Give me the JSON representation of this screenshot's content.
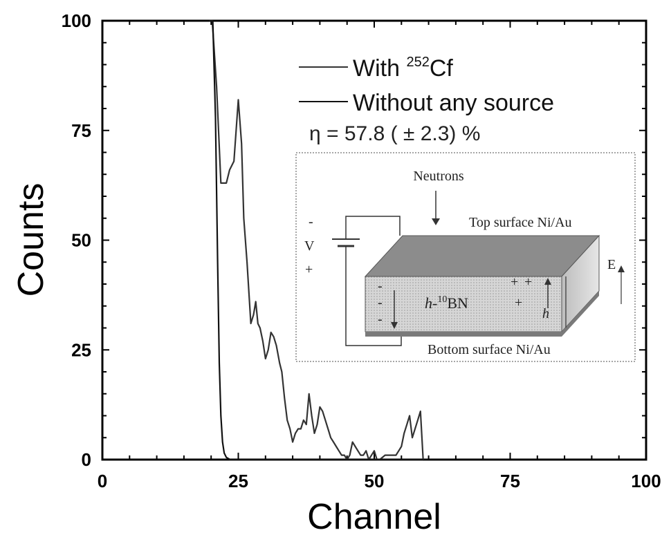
{
  "chart_data": {
    "type": "line",
    "xlabel": "Channel",
    "ylabel": "Counts",
    "xlim": [
      0,
      100
    ],
    "ylim": [
      0,
      100
    ],
    "xticks": [
      "0",
      "25",
      "50",
      "75",
      "100"
    ],
    "yticks": [
      "0",
      "25",
      "50",
      "75",
      "100"
    ],
    "grid": false,
    "legend_position": "top-right",
    "series": [
      {
        "name": "With ²⁵²Cf",
        "color": "#333333",
        "x": [
          19.7,
          20.2,
          21.0,
          21.8,
          22.8,
          23.4,
          24.2,
          25.0,
          25.6,
          26.0,
          26.6,
          27.3,
          27.8,
          28.2,
          28.6,
          29.0,
          29.5,
          30.0,
          30.5,
          31.0,
          31.5,
          32.0,
          32.6,
          33.0,
          33.5,
          34.0,
          34.5,
          35.0,
          35.5,
          36.0,
          36.5,
          37.0,
          37.5,
          38.0,
          38.5,
          39.0,
          39.5,
          40.0,
          40.5,
          41.0,
          41.5,
          42.0,
          42.5,
          43.0,
          43.5,
          44.0,
          44.5,
          45.0,
          45.5,
          46.0,
          46.5,
          47.0,
          47.5,
          48.0,
          48.5,
          49.0,
          49.5,
          50.0,
          50.5,
          51.0,
          52.0,
          53.0,
          53.5,
          54.0,
          54.5,
          55.0,
          55.5,
          56.0,
          56.5,
          57.0,
          57.5,
          58.0,
          58.5,
          59.0
        ],
        "values": [
          100,
          100,
          85,
          63,
          63,
          66,
          68,
          82,
          72,
          55,
          45,
          31,
          33,
          36,
          31,
          30,
          27,
          23,
          25,
          29,
          28,
          26,
          22,
          20,
          14,
          9,
          7,
          4,
          6,
          7,
          7,
          9,
          8,
          15,
          10,
          6,
          8,
          12,
          11,
          9,
          7,
          5,
          4,
          3,
          2,
          1,
          1,
          0,
          1,
          4,
          3,
          2,
          1,
          1,
          2,
          0,
          1,
          2,
          0,
          0,
          1,
          1,
          1,
          1,
          2,
          3,
          6,
          8,
          10,
          5,
          7,
          9,
          11,
          0
        ]
      },
      {
        "name": "Without any source",
        "color": "#111111",
        "x": [
          19.7,
          20.3,
          20.8,
          21.2,
          21.5,
          21.8,
          22.1,
          22.4,
          22.8,
          23.5,
          24.5,
          26.0,
          40.0,
          59.0
        ],
        "values": [
          100,
          100,
          78,
          45,
          22,
          10,
          4,
          1.5,
          0.5,
          0,
          0,
          0,
          0,
          0
        ]
      }
    ],
    "annotations": [
      "η = 57.8 ( ± 2.3) %"
    ]
  },
  "legend": {
    "entries": [
      {
        "prefix": "With ",
        "sup": "252",
        "suffix": "Cf"
      },
      {
        "prefix": "Without any source",
        "sup": "",
        "suffix": ""
      }
    ]
  },
  "annotation": {
    "eta": "η = 57.8 ( ± 2.3) %"
  },
  "inset": {
    "neutrons": "Neutrons",
    "top_surface": "Top surface Ni/Au",
    "bottom_surface": "Bottom surface Ni/Au",
    "material_prefix": "h-",
    "material_sup": "10",
    "material_suffix": "BN",
    "voltage": "V",
    "minus": "-",
    "plus": "+",
    "field": "E",
    "height": "h"
  }
}
